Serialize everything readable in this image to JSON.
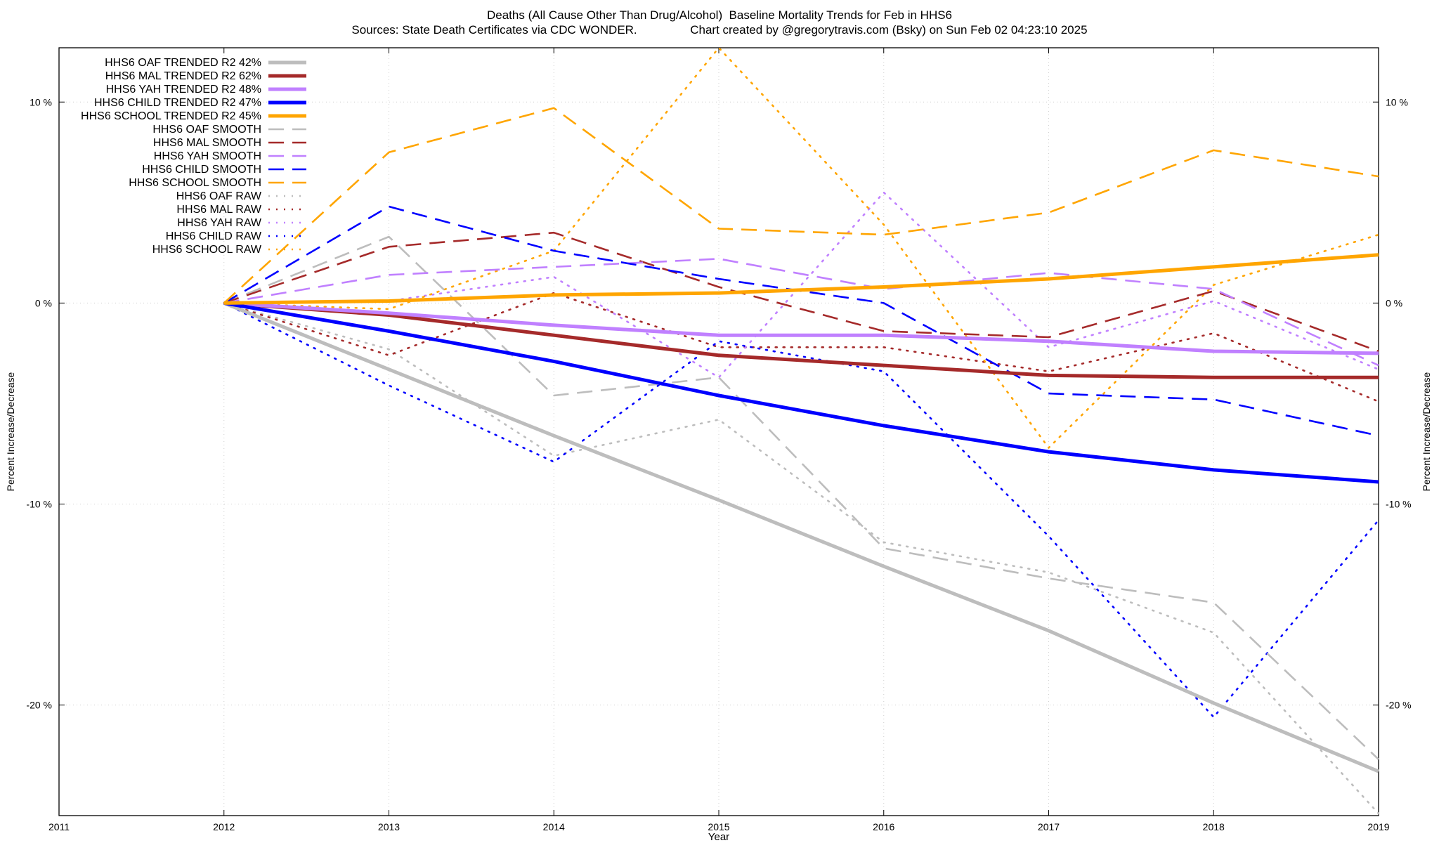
{
  "chart_data": {
    "type": "line",
    "title": "Deaths (All Cause Other Than Drug/Alcohol)  Baseline Mortality Trends for Feb in HHS6",
    "subtitle": "Sources: State Death Certificates via CDC WONDER.                Chart created by @gregorytravis.com (Bsky) on Sun Feb 02 04:23:10 2025",
    "xlabel": "Year",
    "ylabel": "Percent Increase/Decrease",
    "y2label": "Percent Increase/Decrease",
    "xlim": [
      2011,
      2019
    ],
    "ylim": [
      -25.5,
      12.7
    ],
    "x_ticks": [
      2011,
      2012,
      2013,
      2014,
      2015,
      2016,
      2017,
      2018,
      2019
    ],
    "y_ticks": [
      -20,
      -10,
      0,
      10
    ],
    "y_tick_labels": [
      "-20 %",
      "-10 %",
      "0 %",
      "10 %"
    ],
    "grid": true,
    "legend_position": "top-left",
    "x": [
      2012,
      2013,
      2014,
      2015,
      2016,
      2017,
      2018,
      2019
    ],
    "series": [
      {
        "name": "HHS6 OAF TRENDED R2  42%",
        "style": "solid",
        "color": "#bdbdbd",
        "values": [
          0,
          -3.3,
          -6.6,
          -9.8,
          -13.1,
          -16.3,
          -19.9,
          -23.3
        ]
      },
      {
        "name": "HHS6 MAL TRENDED R2  62%",
        "style": "solid",
        "color": "#a52a2a",
        "values": [
          0,
          -0.6,
          -1.6,
          -2.6,
          -3.1,
          -3.6,
          -3.7,
          -3.7
        ]
      },
      {
        "name": "HHS6 YAH TRENDED R2  48%",
        "style": "solid",
        "color": "#c080ff",
        "values": [
          0,
          -0.5,
          -1.1,
          -1.6,
          -1.6,
          -1.9,
          -2.4,
          -2.5
        ]
      },
      {
        "name": "HHS6 CHILD TRENDED R2  47%",
        "style": "solid",
        "color": "#0000ff",
        "values": [
          0,
          -1.4,
          -2.9,
          -4.6,
          -6.1,
          -7.4,
          -8.3,
          -8.9
        ]
      },
      {
        "name": "HHS6 SCHOOL TRENDED R2  45%",
        "style": "solid",
        "color": "#ffa500",
        "values": [
          0,
          0.1,
          0.4,
          0.5,
          0.8,
          1.2,
          1.8,
          2.4
        ]
      },
      {
        "name": "HHS6 OAF SMOOTH",
        "style": "dashed",
        "color": "#bdbdbd",
        "values": [
          0,
          3.3,
          -4.6,
          -3.7,
          -12.2,
          -13.7,
          -14.9,
          -22.7
        ]
      },
      {
        "name": "HHS6 MAL SMOOTH",
        "style": "dashed",
        "color": "#a52a2a",
        "values": [
          0,
          2.8,
          3.5,
          0.8,
          -1.4,
          -1.7,
          0.6,
          -2.4
        ]
      },
      {
        "name": "HHS6 YAH SMOOTH",
        "style": "dashed",
        "color": "#c080ff",
        "values": [
          0,
          1.4,
          1.8,
          2.2,
          0.7,
          1.5,
          0.7,
          -3.1
        ]
      },
      {
        "name": "HHS6 CHILD SMOOTH",
        "style": "dashed",
        "color": "#0000ff",
        "values": [
          0,
          4.8,
          2.6,
          1.2,
          0.0,
          -4.5,
          -4.8,
          -6.6
        ]
      },
      {
        "name": "HHS6 SCHOOL SMOOTH",
        "style": "dashed",
        "color": "#ffa500",
        "values": [
          0,
          7.5,
          9.7,
          3.7,
          3.4,
          4.5,
          7.6,
          6.3
        ]
      },
      {
        "name": "HHS6 OAF RAW",
        "style": "dotted",
        "color": "#bdbdbd",
        "values": [
          0,
          -2.3,
          -7.6,
          -5.8,
          -11.9,
          -13.4,
          -16.4,
          -25.4
        ]
      },
      {
        "name": "HHS6 MAL RAW",
        "style": "dotted",
        "color": "#a52a2a",
        "values": [
          0,
          -2.6,
          0.5,
          -2.2,
          -2.2,
          -3.4,
          -1.5,
          -4.9
        ]
      },
      {
        "name": "HHS6 YAH RAW",
        "style": "dotted",
        "color": "#c080ff",
        "values": [
          0,
          0.1,
          1.3,
          -3.7,
          5.5,
          -2.2,
          0.1,
          -3.3
        ]
      },
      {
        "name": "HHS6 CHILD RAW",
        "style": "dotted",
        "color": "#0000ff",
        "values": [
          0,
          -4.1,
          -7.9,
          -1.9,
          -3.4,
          -11.6,
          -20.6,
          -10.8
        ]
      },
      {
        "name": "HHS6 SCHOOL RAW",
        "style": "dotted",
        "color": "#ffa500",
        "values": [
          0,
          -0.3,
          2.6,
          12.7,
          3.9,
          -7.2,
          0.9,
          3.4
        ]
      }
    ]
  }
}
